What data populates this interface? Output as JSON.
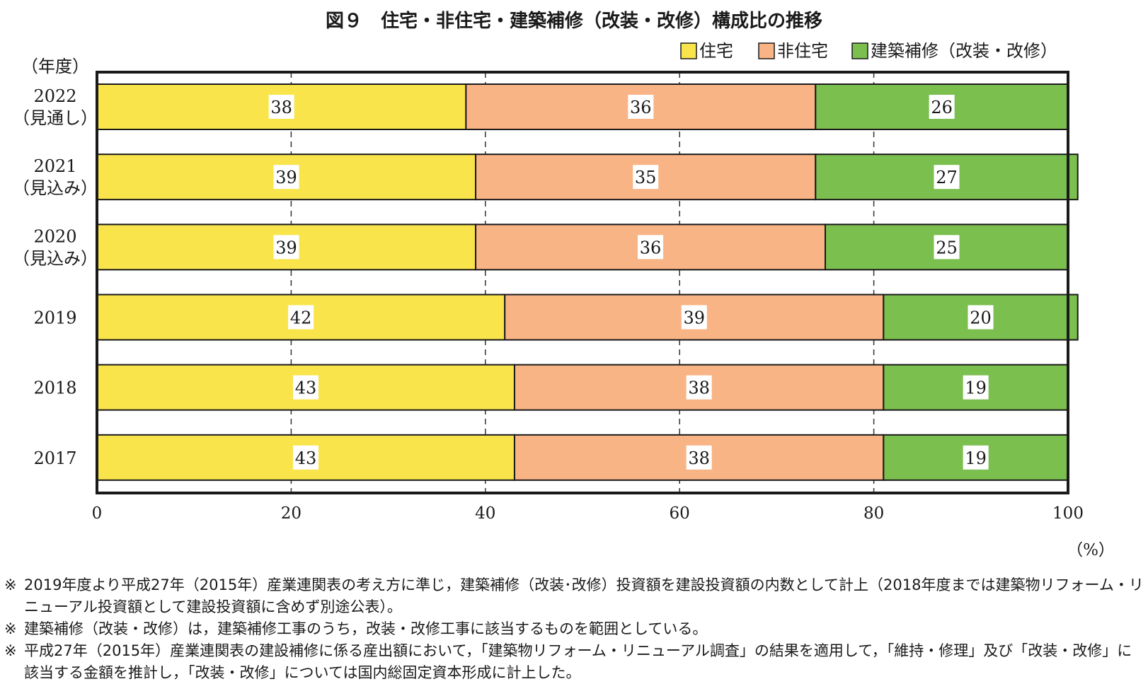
{
  "chart_data": {
    "type": "bar",
    "orientation": "horizontal",
    "stacked": true,
    "title": "図９　住宅・非住宅・建築補修（改装・改修）構成比の推移",
    "ylabel": "（年度）",
    "xunit": "（%）",
    "xlim": [
      0,
      100
    ],
    "xticks": [
      0,
      20,
      40,
      60,
      80,
      100
    ],
    "grid": "vertical dashed",
    "legend_position": "top-right",
    "categories": [
      {
        "year": "2022",
        "note": "（見通し）"
      },
      {
        "year": "2021",
        "note": "（見込み）"
      },
      {
        "year": "2020",
        "note": "（見込み）"
      },
      {
        "year": "2019",
        "note": ""
      },
      {
        "year": "2018",
        "note": ""
      },
      {
        "year": "2017",
        "note": ""
      }
    ],
    "series": [
      {
        "name": "住宅",
        "color": "#f9e44b",
        "values": [
          38,
          39,
          39,
          42,
          43,
          43
        ]
      },
      {
        "name": "非住宅",
        "color": "#f9b486",
        "values": [
          36,
          35,
          36,
          39,
          38,
          38
        ]
      },
      {
        "name": "建築補修（改装・改修）",
        "color": "#7bbf4f",
        "values": [
          26,
          27,
          25,
          20,
          19,
          19
        ]
      }
    ]
  },
  "notes": {
    "mark": "※",
    "items": [
      "2019年度より平成27年（2015年）産業連関表の考え方に準じ，建築補修（改装･改修）投資額を建設投資額の内数として計上（2018年度までは建築物リフォーム・リニューアル投資額として建設投資額に含めず別途公表）。",
      "建築補修（改装・改修）は，建築補修工事のうち，改装・改修工事に該当するものを範囲としている。",
      "平成27年（2015年）産業連関表の建設補修に係る産出額において，「建築物リフォーム・リニューアル調査」の結果を適用して，「維持・修理」及び「改装・改修」に該当する金額を推計し，「改装・改修」については国内総固定資本形成に計上した。"
    ]
  }
}
